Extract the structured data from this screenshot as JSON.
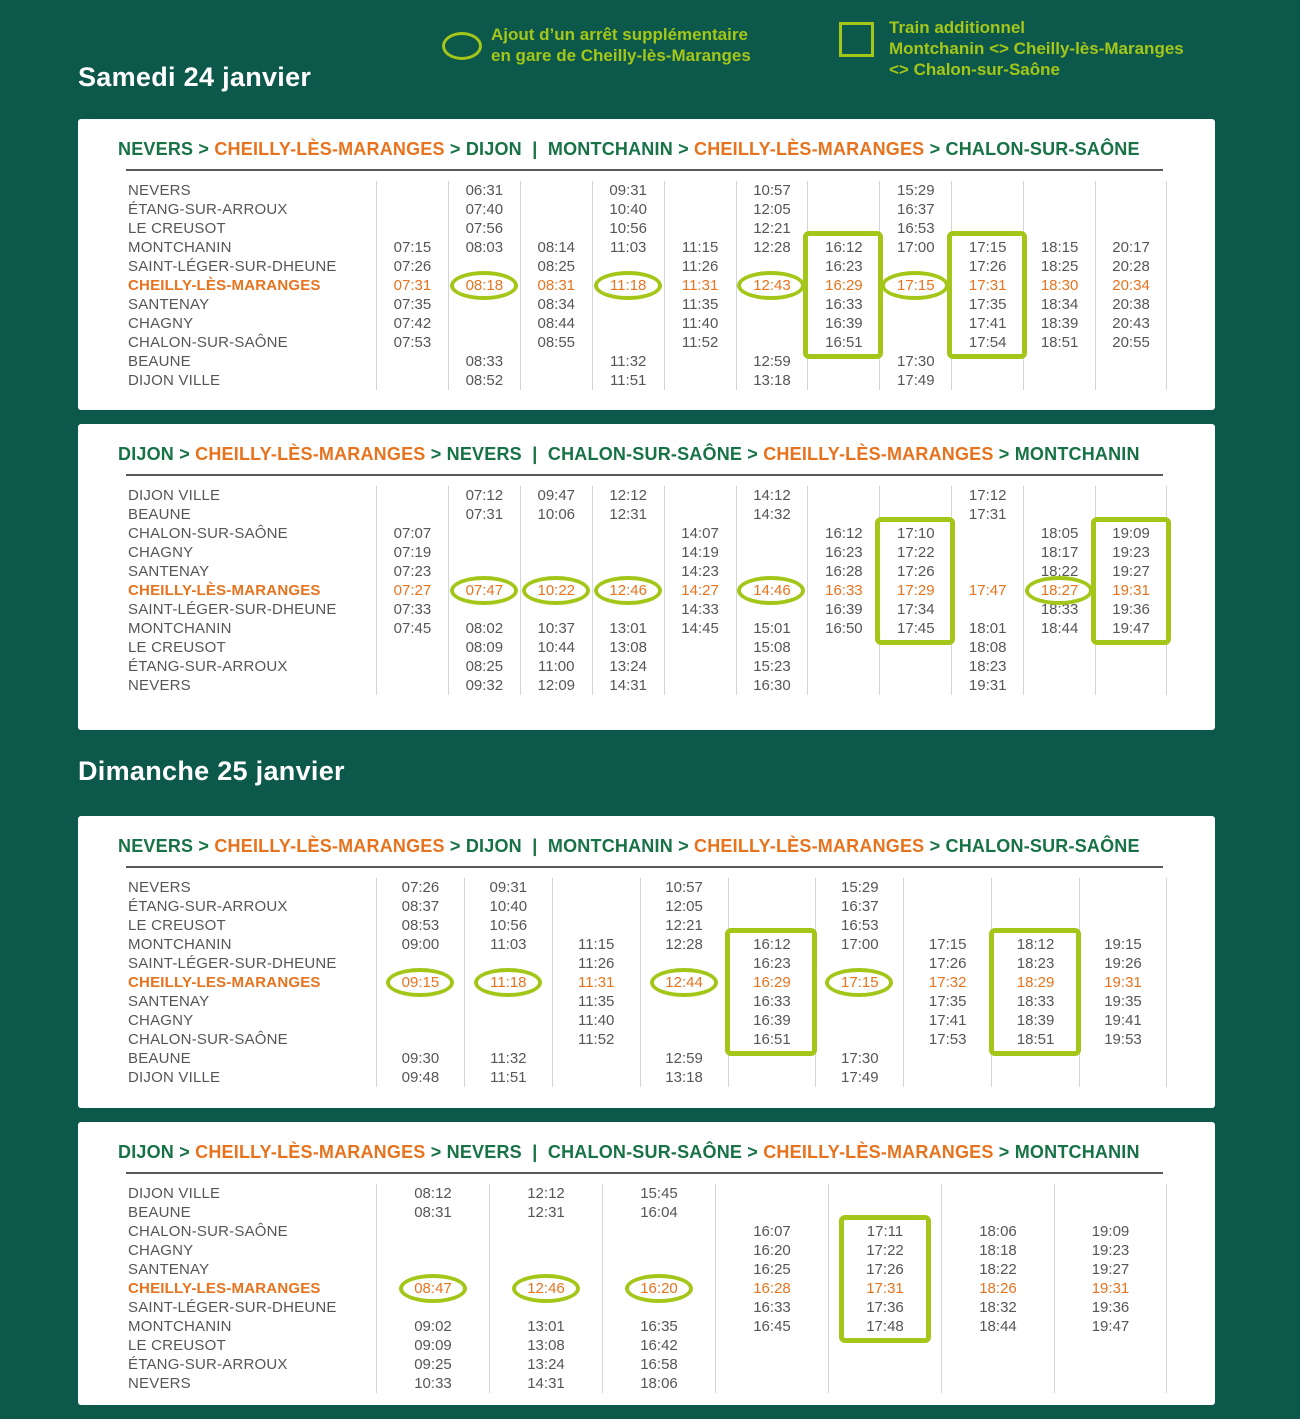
{
  "colors": {
    "background": "#0C584B",
    "lime": "#A4C619",
    "orange": "#E8731E",
    "green": "#177245",
    "time_gray": "#55565A",
    "divider": "#D4D5D7",
    "panel": "#FFFFFF"
  },
  "legend": {
    "stop": {
      "icon": "oval-icon",
      "line1": "Ajout d’un arrêt supplémentaire",
      "line2": "en gare de Cheilly-lès-Maranges"
    },
    "train": {
      "icon": "square-icon",
      "line1": "Train additionnel",
      "line2": "Montchanin <> Cheilly-lès-Maranges",
      "line3": "<> Chalon-sur-Saône"
    }
  },
  "sections": [
    {
      "heading": "Samedi 24 janvier",
      "tables": [
        {
          "route": [
            {
              "t": "NEVERS",
              "c": "green"
            },
            {
              "t": " > ",
              "c": "green"
            },
            {
              "t": "CHEILLY-LÈS-MARANGES",
              "c": "orange"
            },
            {
              "t": " > ",
              "c": "green"
            },
            {
              "t": "DIJON",
              "c": "green"
            },
            {
              "t": "  |  ",
              "c": "green"
            },
            {
              "t": "MONTCHANIN",
              "c": "green"
            },
            {
              "t": " > ",
              "c": "green"
            },
            {
              "t": "CHEILLY-LÈS-MARANGES",
              "c": "orange"
            },
            {
              "t": " > ",
              "c": "green"
            },
            {
              "t": "CHALON-SUR-SAÔNE",
              "c": "green"
            }
          ],
          "stations": [
            "NEVERS",
            "ÉTANG-SUR-ARROUX",
            "LE CREUSOT",
            "MONTCHANIN",
            "SAINT-LÉGER-SUR-DHEUNE",
            "CHEILLY-LÈS-MARANGES",
            "SANTENAY",
            "CHAGNY",
            "CHALON-SUR-SAÔNE",
            "BEAUNE",
            "DIJON VILLE"
          ],
          "highlight_row": 5,
          "times": [
            [
              "",
              "06:31",
              "",
              "09:31",
              "",
              "10:57",
              "",
              "15:29",
              "",
              "",
              ""
            ],
            [
              "",
              "07:40",
              "",
              "10:40",
              "",
              "12:05",
              "",
              "16:37",
              "",
              "",
              ""
            ],
            [
              "",
              "07:56",
              "",
              "10:56",
              "",
              "12:21",
              "",
              "16:53",
              "",
              "",
              ""
            ],
            [
              "07:15",
              "08:03",
              "08:14",
              "11:03",
              "11:15",
              "12:28",
              "16:12",
              "17:00",
              "17:15",
              "18:15",
              "20:17"
            ],
            [
              "07:26",
              "",
              "08:25",
              "",
              "11:26",
              "",
              "16:23",
              "",
              "17:26",
              "18:25",
              "20:28"
            ],
            [
              "07:31",
              "08:18",
              "08:31",
              "11:18",
              "11:31",
              "12:43",
              "16:29",
              "17:15",
              "17:31",
              "18:30",
              "20:34"
            ],
            [
              "07:35",
              "",
              "08:34",
              "",
              "11:35",
              "",
              "16:33",
              "",
              "17:35",
              "18:34",
              "20:38"
            ],
            [
              "07:42",
              "",
              "08:44",
              "",
              "11:40",
              "",
              "16:39",
              "",
              "17:41",
              "18:39",
              "20:43"
            ],
            [
              "07:53",
              "",
              "08:55",
              "",
              "11:52",
              "",
              "16:51",
              "",
              "17:54",
              "18:51",
              "20:55"
            ],
            [
              "",
              "08:33",
              "",
              "11:32",
              "",
              "12:59",
              "",
              "17:30",
              "",
              "",
              ""
            ],
            [
              "",
              "08:52",
              "",
              "11:51",
              "",
              "13:18",
              "",
              "17:49",
              "",
              "",
              ""
            ]
          ],
          "ovals": [
            [
              5,
              1
            ],
            [
              5,
              3
            ],
            [
              5,
              5
            ],
            [
              5,
              7
            ]
          ],
          "boxes": [
            {
              "col": 6,
              "row_start": 3,
              "row_end": 8
            },
            {
              "col": 8,
              "row_start": 3,
              "row_end": 8
            }
          ]
        },
        {
          "route": [
            {
              "t": "DIJON",
              "c": "green"
            },
            {
              "t": " > ",
              "c": "green"
            },
            {
              "t": "CHEILLY-LÈS-MARANGES",
              "c": "orange"
            },
            {
              "t": " > ",
              "c": "green"
            },
            {
              "t": "NEVERS",
              "c": "green"
            },
            {
              "t": "  |  ",
              "c": "green"
            },
            {
              "t": "CHALON-SUR-SAÔNE",
              "c": "green"
            },
            {
              "t": " > ",
              "c": "green"
            },
            {
              "t": "CHEILLY-LÈS-MARANGES",
              "c": "orange"
            },
            {
              "t": " > ",
              "c": "green"
            },
            {
              "t": "MONTCHANIN",
              "c": "green"
            }
          ],
          "stations": [
            "DIJON VILLE",
            "BEAUNE",
            "CHALON-SUR-SAÔNE",
            "CHAGNY",
            "SANTENAY",
            "CHEILLY-LÈS-MARANGES",
            "SAINT-LÉGER-SUR-DHEUNE",
            "MONTCHANIN",
            "LE CREUSOT",
            "ÉTANG-SUR-ARROUX",
            "NEVERS"
          ],
          "highlight_row": 5,
          "times": [
            [
              "",
              "07:12",
              "09:47",
              "12:12",
              "",
              "14:12",
              "",
              "",
              "17:12",
              "",
              ""
            ],
            [
              "",
              "07:31",
              "10:06",
              "12:31",
              "",
              "14:32",
              "",
              "",
              "17:31",
              "",
              ""
            ],
            [
              "07:07",
              "",
              "",
              "",
              "14:07",
              "",
              "16:12",
              "17:10",
              "",
              "18:05",
              "19:09"
            ],
            [
              "07:19",
              "",
              "",
              "",
              "14:19",
              "",
              "16:23",
              "17:22",
              "",
              "18:17",
              "19:23"
            ],
            [
              "07:23",
              "",
              "",
              "",
              "14:23",
              "",
              "16:28",
              "17:26",
              "",
              "18:22",
              "19:27"
            ],
            [
              "07:27",
              "07:47",
              "10:22",
              "12:46",
              "14:27",
              "14:46",
              "16:33",
              "17:29",
              "17:47",
              "18:27",
              "19:31"
            ],
            [
              "07:33",
              "",
              "",
              "",
              "14:33",
              "",
              "16:39",
              "17:34",
              "",
              "18:33",
              "19:36"
            ],
            [
              "07:45",
              "08:02",
              "10:37",
              "13:01",
              "14:45",
              "15:01",
              "16:50",
              "17:45",
              "18:01",
              "18:44",
              "19:47"
            ],
            [
              "",
              "08:09",
              "10:44",
              "13:08",
              "",
              "15:08",
              "",
              "",
              "18:08",
              "",
              ""
            ],
            [
              "",
              "08:25",
              "11:00",
              "13:24",
              "",
              "15:23",
              "",
              "",
              "18:23",
              "",
              ""
            ],
            [
              "",
              "09:32",
              "12:09",
              "14:31",
              "",
              "16:30",
              "",
              "",
              "19:31",
              "",
              ""
            ]
          ],
          "ovals": [
            [
              5,
              1
            ],
            [
              5,
              2
            ],
            [
              5,
              3
            ],
            [
              5,
              5
            ],
            [
              5,
              9
            ]
          ],
          "boxes": [
            {
              "col": 7,
              "row_start": 2,
              "row_end": 7
            },
            {
              "col": 10,
              "row_start": 2,
              "row_end": 7
            }
          ]
        }
      ]
    },
    {
      "heading": "Dimanche 25 janvier",
      "tables": [
        {
          "route": [
            {
              "t": "NEVERS",
              "c": "green"
            },
            {
              "t": " > ",
              "c": "green"
            },
            {
              "t": "CHEILLY-LÈS-MARANGES",
              "c": "orange"
            },
            {
              "t": " > ",
              "c": "green"
            },
            {
              "t": "DIJON",
              "c": "green"
            },
            {
              "t": "  |  ",
              "c": "green"
            },
            {
              "t": "MONTCHANIN",
              "c": "green"
            },
            {
              "t": " > ",
              "c": "green"
            },
            {
              "t": "CHEILLY-LÈS-MARANGES",
              "c": "orange"
            },
            {
              "t": " > ",
              "c": "green"
            },
            {
              "t": "CHALON-SUR-SAÔNE",
              "c": "green"
            }
          ],
          "stations": [
            "NEVERS",
            "ÉTANG-SUR-ARROUX",
            "LE CREUSOT",
            "MONTCHANIN",
            "SAINT-LÉGER-SUR-DHEUNE",
            "CHEILLY-LES-MARANGES",
            "SANTENAY",
            "CHAGNY",
            "CHALON-SUR-SAÔNE",
            "BEAUNE",
            "DIJON VILLE"
          ],
          "highlight_row": 5,
          "times": [
            [
              "07:26",
              "09:31",
              "",
              "10:57",
              "",
              "15:29",
              "",
              "",
              ""
            ],
            [
              "08:37",
              "10:40",
              "",
              "12:05",
              "",
              "16:37",
              "",
              "",
              ""
            ],
            [
              "08:53",
              "10:56",
              "",
              "12:21",
              "",
              "16:53",
              "",
              "",
              ""
            ],
            [
              "09:00",
              "11:03",
              "11:15",
              "12:28",
              "16:12",
              "17:00",
              "17:15",
              "18:12",
              "19:15"
            ],
            [
              "",
              "",
              "11:26",
              "",
              "16:23",
              "",
              "17:26",
              "18:23",
              "19:26"
            ],
            [
              "09:15",
              "11:18",
              "11:31",
              "12:44",
              "16:29",
              "17:15",
              "17:32",
              "18:29",
              "19:31"
            ],
            [
              "",
              "",
              "11:35",
              "",
              "16:33",
              "",
              "17:35",
              "18:33",
              "19:35"
            ],
            [
              "",
              "",
              "11:40",
              "",
              "16:39",
              "",
              "17:41",
              "18:39",
              "19:41"
            ],
            [
              "",
              "",
              "11:52",
              "",
              "16:51",
              "",
              "17:53",
              "18:51",
              "19:53"
            ],
            [
              "09:30",
              "11:32",
              "",
              "12:59",
              "",
              "17:30",
              "",
              "",
              ""
            ],
            [
              "09:48",
              "11:51",
              "",
              "13:18",
              "",
              "17:49",
              "",
              "",
              ""
            ]
          ],
          "ovals": [
            [
              5,
              0
            ],
            [
              5,
              1
            ],
            [
              5,
              3
            ],
            [
              5,
              5
            ]
          ],
          "boxes": [
            {
              "col": 4,
              "row_start": 3,
              "row_end": 8
            },
            {
              "col": 7,
              "row_start": 3,
              "row_end": 8
            }
          ]
        },
        {
          "route": [
            {
              "t": "DIJON",
              "c": "green"
            },
            {
              "t": " > ",
              "c": "green"
            },
            {
              "t": "CHEILLY-LÈS-MARANGES",
              "c": "orange"
            },
            {
              "t": " > ",
              "c": "green"
            },
            {
              "t": "NEVERS",
              "c": "green"
            },
            {
              "t": "  |  ",
              "c": "green"
            },
            {
              "t": "CHALON-SUR-SAÔNE",
              "c": "green"
            },
            {
              "t": " > ",
              "c": "green"
            },
            {
              "t": "CHEILLY-LÈS-MARANGES",
              "c": "orange"
            },
            {
              "t": " > ",
              "c": "green"
            },
            {
              "t": "MONTCHANIN",
              "c": "green"
            }
          ],
          "stations": [
            "DIJON VILLE",
            "BEAUNE",
            "CHALON-SUR-SAÔNE",
            "CHAGNY",
            "SANTENAY",
            "CHEILLY-LES-MARANGES",
            "SAINT-LÉGER-SUR-DHEUNE",
            "MONTCHANIN",
            "LE CREUSOT",
            "ÉTANG-SUR-ARROUX",
            "NEVERS"
          ],
          "highlight_row": 5,
          "times": [
            [
              "08:12",
              "12:12",
              "15:45",
              "",
              "",
              "",
              ""
            ],
            [
              "08:31",
              "12:31",
              "16:04",
              "",
              "",
              "",
              ""
            ],
            [
              "",
              "",
              "",
              "16:07",
              "17:11",
              "18:06",
              "19:09"
            ],
            [
              "",
              "",
              "",
              "16:20",
              "17:22",
              "18:18",
              "19:23"
            ],
            [
              "",
              "",
              "",
              "16:25",
              "17:26",
              "18:22",
              "19:27"
            ],
            [
              "08:47",
              "12:46",
              "16:20",
              "16:28",
              "17:31",
              "18:26",
              "19:31"
            ],
            [
              "",
              "",
              "",
              "16:33",
              "17:36",
              "18:32",
              "19:36"
            ],
            [
              "09:02",
              "13:01",
              "16:35",
              "16:45",
              "17:48",
              "18:44",
              "19:47"
            ],
            [
              "09:09",
              "13:08",
              "16:42",
              "",
              "",
              "",
              ""
            ],
            [
              "09:25",
              "13:24",
              "16:58",
              "",
              "",
              "",
              ""
            ],
            [
              "10:33",
              "14:31",
              "18:06",
              "",
              "",
              "",
              ""
            ]
          ],
          "ovals": [
            [
              5,
              0
            ],
            [
              5,
              1
            ],
            [
              5,
              2
            ]
          ],
          "boxes": [
            {
              "col": 4,
              "row_start": 2,
              "row_end": 7
            }
          ]
        }
      ]
    }
  ]
}
